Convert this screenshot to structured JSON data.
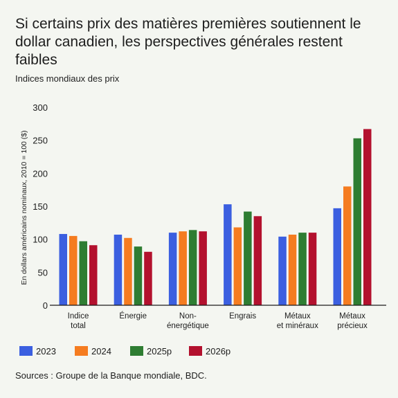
{
  "header": {
    "title": "Si certains prix des matières premières soutiennent le dollar canadien, les perspectives générales restent faibles",
    "subtitle": "Indices mondiaux des prix"
  },
  "footer": {
    "source": "Sources : Groupe de la Banque mondiale, BDC."
  },
  "chart_data": {
    "type": "bar",
    "title": "Si certains prix des matières premières soutiennent le dollar canadien, les perspectives générales restent faibles",
    "subtitle": "Indices mondiaux des prix",
    "ylabel": "En dollars américains nominaux, 2010 = 100 ($)",
    "xlabel": "",
    "ylim": [
      0,
      300
    ],
    "yticks": [
      0,
      50,
      100,
      150,
      200,
      250,
      300
    ],
    "grid": false,
    "legend_position": "bottom-left",
    "categories": [
      [
        "Indice",
        "total"
      ],
      [
        "Énergie"
      ],
      [
        "Non-",
        "énergétique"
      ],
      [
        "Engrais"
      ],
      [
        "Métaux",
        "et minéraux"
      ],
      [
        "Métaux",
        "précieux"
      ]
    ],
    "series": [
      {
        "name": "2023",
        "color": "#3b5fe0",
        "values": [
          108,
          107,
          110,
          153,
          104,
          147
        ]
      },
      {
        "name": "2024",
        "color": "#f57c20",
        "values": [
          105,
          102,
          112,
          118,
          107,
          180
        ]
      },
      {
        "name": "2025p",
        "color": "#2e7d32",
        "values": [
          97,
          89,
          114,
          142,
          110,
          253
        ]
      },
      {
        "name": "2026p",
        "color": "#b3112e",
        "values": [
          91,
          81,
          112,
          135,
          110,
          267
        ]
      }
    ]
  }
}
